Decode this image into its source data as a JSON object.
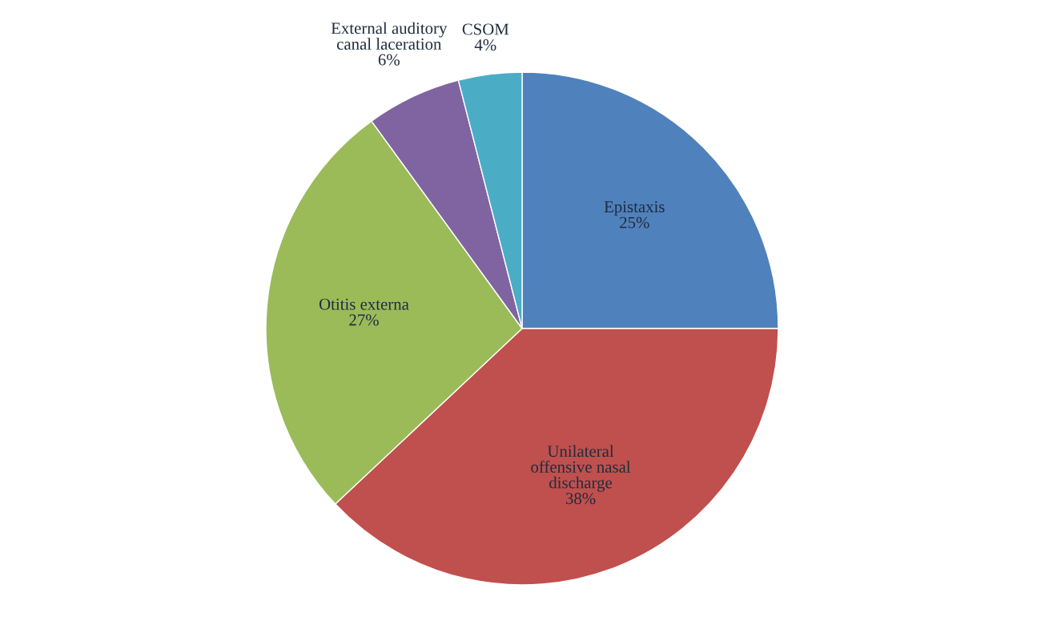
{
  "chart_data": {
    "type": "pie",
    "categories": [
      "Epistaxis",
      "Unilateral\noffensive nasal\ndischarge",
      "Otitis externa",
      "External auditory\ncanal laceration",
      "CSOM"
    ],
    "values": [
      25,
      38,
      27,
      6,
      4
    ],
    "colors": [
      "#4f81bd",
      "#c0504d",
      "#9bbb59",
      "#8064a2",
      "#4bacc6"
    ],
    "value_labels": [
      "25%",
      "38%",
      "27%",
      "6%",
      "4%"
    ]
  }
}
